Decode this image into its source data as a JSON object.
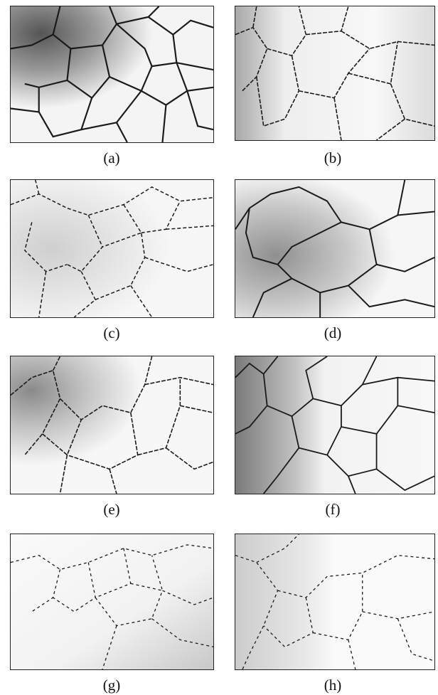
{
  "figure": {
    "panels": [
      {
        "label": "(a)"
      },
      {
        "label": "(b)"
      },
      {
        "label": "(c)"
      },
      {
        "label": "(d)"
      },
      {
        "label": "(e)"
      },
      {
        "label": "(f)"
      },
      {
        "label": "(g)"
      },
      {
        "label": "(h)"
      }
    ],
    "colors": {
      "background": "#ffffff",
      "network_line": "#1a1a1a",
      "shading": "#8a8a8a",
      "frame": "#222222"
    }
  }
}
